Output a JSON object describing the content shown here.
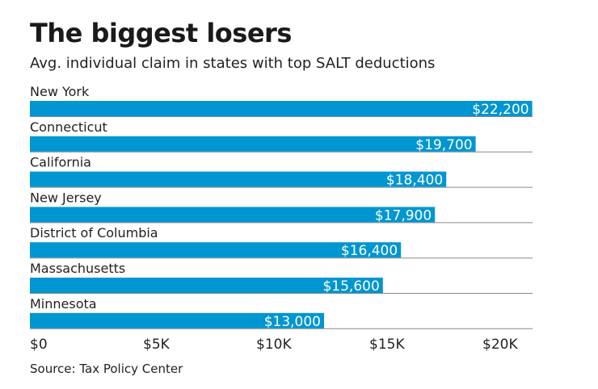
{
  "chart_data": {
    "type": "bar",
    "orientation": "horizontal",
    "title": "The biggest losers",
    "subtitle": "Avg. individual claim in states with top SALT deductions",
    "categories": [
      "New York",
      "Connecticut",
      "California",
      "New Jersey",
      "District of Columbia",
      "Massachusetts",
      "Minnesota"
    ],
    "values": [
      22200,
      19700,
      18400,
      17900,
      16400,
      15600,
      13000
    ],
    "data_labels": [
      "$22,200",
      "$19,700",
      "$18,400",
      "$17,900",
      "$16,400",
      "$15,600",
      "$13,000"
    ],
    "xlim": [
      0,
      22200
    ],
    "x_ticks": [
      0,
      5000,
      10000,
      15000,
      20000
    ],
    "x_tick_labels": [
      "$0",
      "$5K",
      "$10K",
      "$15K",
      "$20K"
    ],
    "grid": false,
    "bar_color": "#0096d1",
    "source": "Source: Tax Policy Center"
  }
}
